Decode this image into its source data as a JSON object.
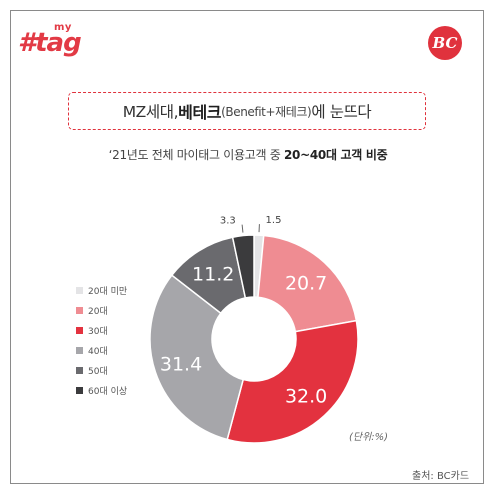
{
  "brand": {
    "mytag_small": "my",
    "mytag_main": "#tag",
    "bc_logo": "BC"
  },
  "headline": {
    "part1": "MZ세대, ",
    "part2_bold": "베테크",
    "part3_small": "(Benefit+재테크)",
    "part4": "에 눈뜨다"
  },
  "subtitle": {
    "part1": "‘21년도 전체 마이태그 이용고객 중 ",
    "part2_bold": "20~40대 고객 비중"
  },
  "unit_label": "(단위:%)",
  "source": "출처: BC카드",
  "colors": {
    "accent": "#e0323d"
  },
  "chart_data": {
    "type": "pie",
    "donut": true,
    "categories": [
      "20대 미만",
      "20대",
      "30대",
      "40대",
      "50대",
      "60대 이상"
    ],
    "values": [
      1.5,
      20.7,
      32.0,
      31.4,
      11.2,
      3.3
    ],
    "labels": [
      "1.5",
      "20.7",
      "32.0",
      "31.4",
      "11.2",
      "3.3"
    ],
    "colors": [
      "#e4e4e6",
      "#ef8c92",
      "#e3323f",
      "#a6a6aa",
      "#6a6a6e",
      "#3b3b3d"
    ],
    "legend_position": "left",
    "start": "top, clockwise"
  }
}
